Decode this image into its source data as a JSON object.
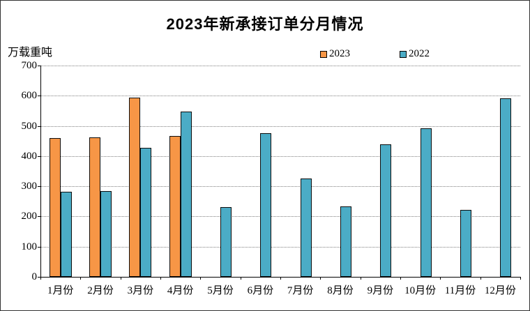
{
  "title": "2023年新承接订单分月情况",
  "y_unit_label": "万载重吨",
  "chart_data": {
    "type": "bar",
    "title": "2023年新承接订单分月情况",
    "ylabel": "万载重吨",
    "xlabel": "",
    "categories": [
      "1月份",
      "2月份",
      "3月份",
      "4月份",
      "5月份",
      "6月份",
      "7月份",
      "8月份",
      "9月份",
      "10月份",
      "11月份",
      "12月份"
    ],
    "series": [
      {
        "name": "2023",
        "color": "#F79646",
        "values": [
          460,
          462,
          593,
          467,
          null,
          null,
          null,
          null,
          null,
          null,
          null,
          null
        ]
      },
      {
        "name": "2022",
        "color": "#4BACC6",
        "values": [
          281,
          284,
          428,
          548,
          231,
          477,
          326,
          233,
          440,
          493,
          221,
          591
        ]
      }
    ],
    "ylim": [
      0,
      700
    ],
    "ytick_interval": 100,
    "grid": "horizontal-dotted",
    "legend_position": "top"
  }
}
